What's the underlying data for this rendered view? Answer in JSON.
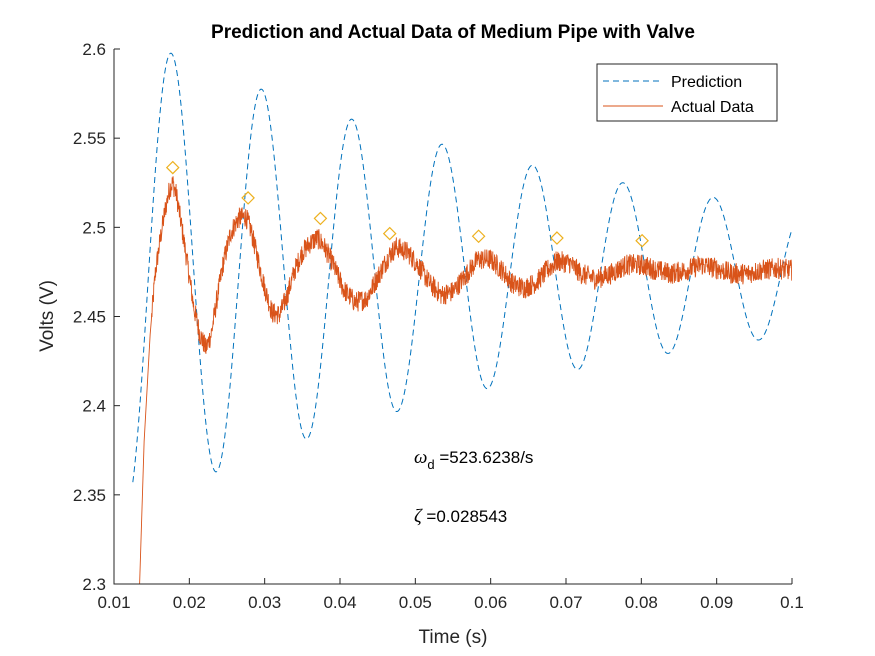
{
  "chart_data": {
    "type": "line",
    "title": "Prediction and Actual Data of Medium Pipe with Valve",
    "xlabel": "Time (s)",
    "ylabel": "Volts (V)",
    "xlim": [
      0.01,
      0.1
    ],
    "ylim": [
      2.3,
      2.6
    ],
    "xticks": [
      0.01,
      0.02,
      0.03,
      0.04,
      0.05,
      0.06,
      0.07,
      0.08,
      0.09,
      0.1
    ],
    "xtick_labels": [
      "0.01",
      "0.02",
      "0.03",
      "0.04",
      "0.05",
      "0.06",
      "0.07",
      "0.08",
      "0.09",
      "0.1"
    ],
    "yticks": [
      2.3,
      2.35,
      2.4,
      2.45,
      2.5,
      2.55,
      2.6
    ],
    "ytick_labels": [
      "2.3",
      "2.35",
      "2.4",
      "2.45",
      "2.5",
      "2.55",
      "2.6"
    ],
    "legend": {
      "location": "top-right",
      "entries": [
        {
          "name": "Prediction",
          "style": "dashed",
          "color": "#0072BD"
        },
        {
          "name": "Actual Data",
          "style": "solid",
          "color": "#D95319"
        }
      ]
    },
    "series": [
      {
        "name": "Prediction",
        "style": "dashed",
        "color": "#0072BD",
        "model": {
          "offset": 2.475,
          "amplitude": 0.1226,
          "zeta": 0.028543,
          "omega_d": 523.6238,
          "t0": 0.0176
        }
      },
      {
        "name": "Actual Data",
        "style": "solid",
        "color": "#D95319",
        "x": [
          0.0134,
          0.014,
          0.0148,
          0.0155,
          0.0162,
          0.0168,
          0.0174,
          0.0178,
          0.0183,
          0.019,
          0.0198,
          0.0206,
          0.0214,
          0.0222,
          0.0229,
          0.0236,
          0.0245,
          0.0255,
          0.0265,
          0.0275,
          0.0282,
          0.029,
          0.03,
          0.031,
          0.032,
          0.033,
          0.034,
          0.035,
          0.036,
          0.037,
          0.0378,
          0.039,
          0.0405,
          0.042,
          0.0435,
          0.045,
          0.0465,
          0.0475,
          0.049,
          0.0505,
          0.052,
          0.0535,
          0.055,
          0.0565,
          0.0583,
          0.06,
          0.0615,
          0.063,
          0.0645,
          0.066,
          0.0675,
          0.0688,
          0.0705,
          0.072,
          0.074,
          0.076,
          0.078,
          0.08,
          0.082,
          0.084,
          0.086,
          0.088,
          0.09,
          0.092,
          0.094,
          0.096,
          0.098,
          0.1
        ],
        "y": [
          2.3,
          2.38,
          2.44,
          2.475,
          2.495,
          2.51,
          2.522,
          2.525,
          2.518,
          2.5,
          2.478,
          2.455,
          2.44,
          2.432,
          2.44,
          2.458,
          2.48,
          2.497,
          2.505,
          2.506,
          2.498,
          2.484,
          2.466,
          2.452,
          2.451,
          2.462,
          2.476,
          2.486,
          2.491,
          2.494,
          2.49,
          2.48,
          2.465,
          2.458,
          2.46,
          2.472,
          2.484,
          2.489,
          2.486,
          2.478,
          2.468,
          2.462,
          2.464,
          2.472,
          2.482,
          2.482,
          2.476,
          2.468,
          2.466,
          2.469,
          2.476,
          2.481,
          2.48,
          2.474,
          2.471,
          2.474,
          2.479,
          2.479,
          2.476,
          2.474,
          2.476,
          2.479,
          2.477,
          2.474,
          2.474,
          2.476,
          2.477,
          2.476
        ]
      }
    ],
    "peaks": {
      "name": "Peak markers",
      "color": "#EDB120",
      "x": [
        0.0178,
        0.0278,
        0.0374,
        0.0466,
        0.0584,
        0.0688,
        0.0801
      ],
      "y": [
        2.5335,
        2.5165,
        2.505,
        2.4965,
        2.495,
        2.494,
        2.4925
      ]
    },
    "annotations": {
      "omega_symbol": "ω",
      "omega_subscript": "d",
      "omega_value": " =523.6238/s",
      "zeta_symbol": "ζ",
      "zeta_value": " =0.028543"
    }
  }
}
